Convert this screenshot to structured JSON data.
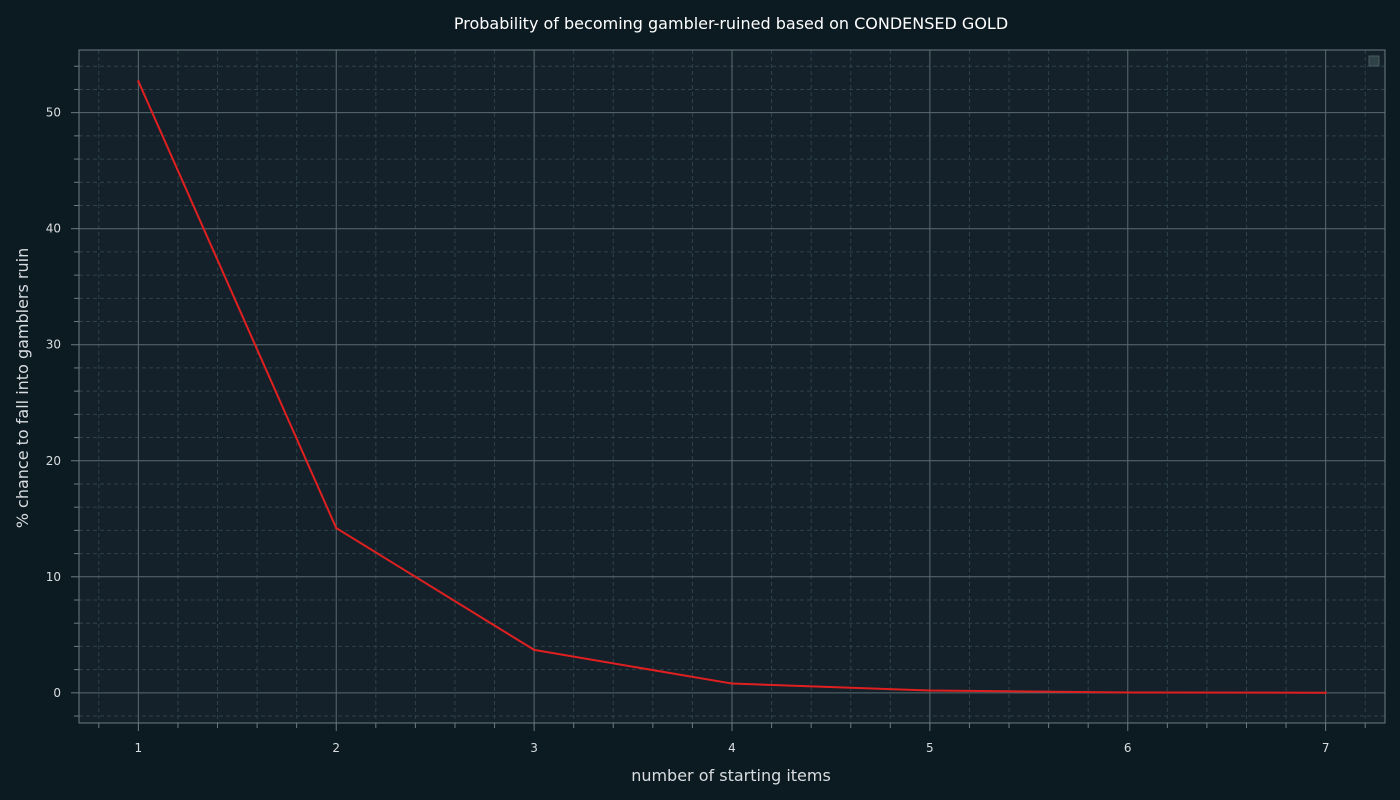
{
  "chart_data": {
    "type": "line",
    "title": "Probability of becoming gambler-ruined based on CONDENSED GOLD",
    "xlabel": "number of starting items",
    "ylabel": "% chance to fall into gamblers ruin",
    "xlim": [
      0.7,
      7.3
    ],
    "ylim": [
      -2.6,
      55.4
    ],
    "xticks": [
      1,
      2,
      3,
      4,
      5,
      6,
      7
    ],
    "yticks": [
      0,
      10,
      20,
      30,
      40,
      50
    ],
    "grid": true,
    "legend": "top-right",
    "series": [
      {
        "color": "#e02020",
        "x": [
          1,
          2,
          3,
          4,
          5,
          6,
          7
        ],
        "y": [
          52.7,
          14.2,
          3.7,
          0.8,
          0.2,
          0.03,
          0.01
        ]
      }
    ]
  },
  "colors": {
    "background": "#0c1b22",
    "plot_background": "#14212a",
    "major_grid": "#5a6a70",
    "minor_grid": "#2e4248",
    "spine": "#6b7b80",
    "line": "#e02020"
  }
}
